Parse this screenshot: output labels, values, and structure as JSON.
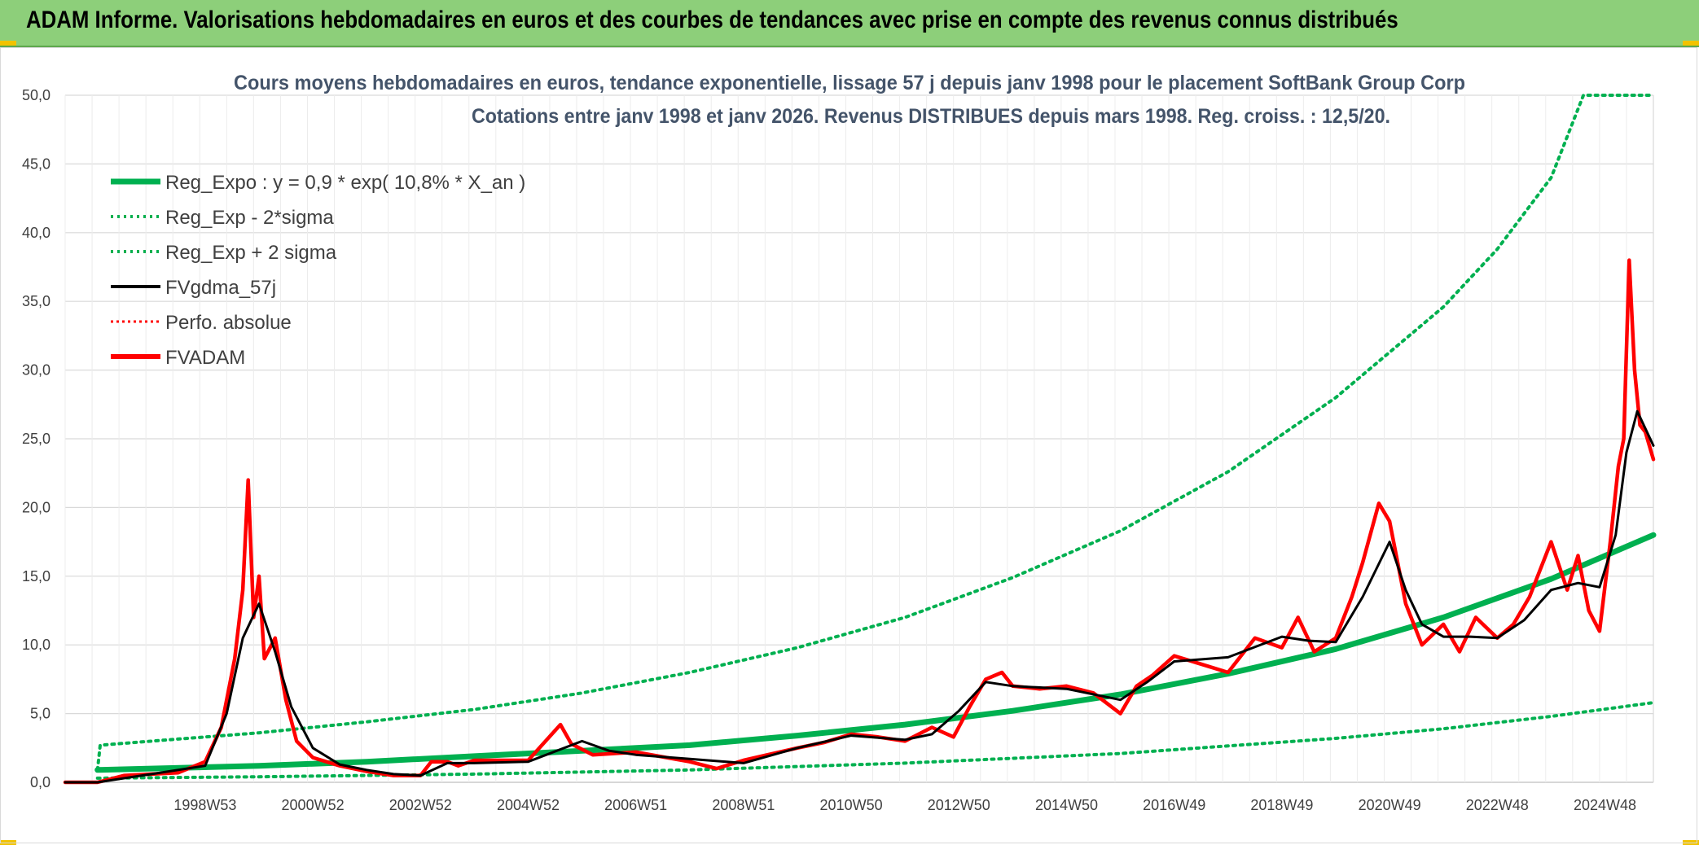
{
  "header": {
    "title": "ADAM Informe. Valorisations hebdomadaires en euros et des courbes de tendances avec prise en compte des revenus connus distribués"
  },
  "colors": {
    "banner": "#8dcf7a",
    "green": "#00b050",
    "red": "#ff0000",
    "black": "#000000",
    "grid": "#d9d9d9"
  },
  "chart_data": {
    "type": "line",
    "title_line1": "Cours moyens hebdomadaires en euros, tendance exponentielle, lissage 57 j depuis janv 1998 pour le placement SoftBank Group Corp",
    "title_line2": "Cotations entre janv 1998 et janv 2026. Revenus DISTRIBUES depuis mars 1998. Reg. croiss. : 12,5/20.",
    "ylim": [
      0,
      50
    ],
    "x_range": [
      1996.4,
      2025.9
    ],
    "y_ticks": [
      "0,0",
      "5,0",
      "10,0",
      "15,0",
      "20,0",
      "25,0",
      "30,0",
      "35,0",
      "40,0",
      "45,0",
      "50,0"
    ],
    "x_ticks": [
      {
        "label": "1998W53",
        "x": 1999.0
      },
      {
        "label": "2000W52",
        "x": 2001.0
      },
      {
        "label": "2002W52",
        "x": 2003.0
      },
      {
        "label": "2004W52",
        "x": 2005.0
      },
      {
        "label": "2006W51",
        "x": 2007.0
      },
      {
        "label": "2008W51",
        "x": 2009.0
      },
      {
        "label": "2010W50",
        "x": 2011.0
      },
      {
        "label": "2012W50",
        "x": 2013.0
      },
      {
        "label": "2014W50",
        "x": 2015.0
      },
      {
        "label": "2016W49",
        "x": 2017.0
      },
      {
        "label": "2018W49",
        "x": 2019.0
      },
      {
        "label": "2020W49",
        "x": 2021.0
      },
      {
        "label": "2022W48",
        "x": 2023.0
      },
      {
        "label": "2024W48",
        "x": 2025.0
      }
    ],
    "legend": [
      {
        "label": "Reg_Expo : y = 0,9 * exp( 10,8% *  X_an )",
        "color": "#00b050",
        "style": "solid-thick"
      },
      {
        "label": "Reg_Exp - 2*sigma",
        "color": "#00b050",
        "style": "dotted"
      },
      {
        "label": "Reg_Exp + 2 sigma",
        "color": "#00b050",
        "style": "dotted"
      },
      {
        "label": "FVgdma_57j",
        "color": "#000000",
        "style": "solid"
      },
      {
        "label": "Perfo. absolue",
        "color": "#ff0000",
        "style": "dotted"
      },
      {
        "label": "FVADAM",
        "color": "#ff0000",
        "style": "solid-thick"
      }
    ],
    "series": [
      {
        "name": "Reg_Expo : y = 0,9 * exp( 10,8% *  X_an )",
        "x": [
          1997.0,
          1998.0,
          2000.0,
          2002.0,
          2004.0,
          2006.0,
          2008.0,
          2010.0,
          2012.0,
          2014.0,
          2016.0,
          2018.0,
          2020.0,
          2022.0,
          2024.0,
          2025.9
        ],
        "values": [
          0.9,
          1.0,
          1.2,
          1.5,
          1.9,
          2.3,
          2.7,
          3.4,
          4.2,
          5.2,
          6.4,
          7.9,
          9.7,
          12.0,
          14.8,
          18.0
        ]
      },
      {
        "name": "Reg_Exp - 2*sigma",
        "x": [
          1997.0,
          2000.0,
          2004.0,
          2008.0,
          2012.0,
          2016.0,
          2020.0,
          2022.0,
          2024.0,
          2025.9
        ],
        "values": [
          0.3,
          0.4,
          0.6,
          0.9,
          1.4,
          2.1,
          3.2,
          3.9,
          4.8,
          5.8
        ]
      },
      {
        "name": "Reg_Exp + 2 sigma",
        "x": [
          1997.0,
          1997.05,
          1998.0,
          2000.0,
          2002.0,
          2004.0,
          2006.0,
          2008.0,
          2010.0,
          2012.0,
          2014.0,
          2016.0,
          2018.0,
          2020.0,
          2022.0,
          2023.0,
          2024.0,
          2024.6,
          2025.9
        ],
        "values": [
          0.9,
          2.7,
          3.0,
          3.6,
          4.4,
          5.3,
          6.5,
          8.0,
          9.8,
          12.0,
          14.9,
          18.3,
          22.6,
          28.0,
          34.6,
          38.8,
          44.0,
          50.0,
          50.0
        ]
      },
      {
        "name": "FVgdma_57j",
        "x": [
          1996.4,
          1997.0,
          1998.0,
          1999.0,
          1999.4,
          1999.7,
          2000.0,
          2000.3,
          2000.6,
          2001.0,
          2001.5,
          2002.0,
          2002.5,
          2003.0,
          2003.5,
          2004.0,
          2005.0,
          2006.0,
          2006.5,
          2007.0,
          2008.0,
          2009.0,
          2010.0,
          2011.0,
          2012.0,
          2012.5,
          2013.0,
          2013.5,
          2014.0,
          2015.0,
          2016.0,
          2016.5,
          2017.0,
          2018.0,
          2019.0,
          2019.5,
          2020.0,
          2020.5,
          2021.0,
          2021.3,
          2021.6,
          2022.0,
          2022.5,
          2023.0,
          2023.5,
          2024.0,
          2024.5,
          2024.9,
          2025.2,
          2025.4,
          2025.6,
          2025.9
        ],
        "values": [
          0.0,
          0.0,
          0.6,
          1.2,
          5.0,
          10.5,
          13.0,
          9.5,
          5.5,
          2.5,
          1.3,
          0.9,
          0.6,
          0.5,
          1.4,
          1.4,
          1.5,
          3.0,
          2.3,
          2.0,
          1.7,
          1.4,
          2.5,
          3.4,
          3.1,
          3.5,
          5.2,
          7.3,
          7.0,
          6.8,
          6.0,
          7.3,
          8.8,
          9.1,
          10.6,
          10.3,
          10.2,
          13.5,
          17.5,
          14.0,
          11.5,
          10.6,
          10.6,
          10.5,
          11.8,
          14.0,
          14.5,
          14.2,
          18.0,
          24.0,
          27.0,
          24.5
        ]
      },
      {
        "name": "FVADAM",
        "x": [
          1996.4,
          1997.0,
          1997.5,
          1998.0,
          1998.5,
          1999.0,
          1999.3,
          1999.55,
          1999.7,
          1999.8,
          1999.9,
          2000.0,
          2000.1,
          2000.3,
          2000.5,
          2000.7,
          2001.0,
          2001.5,
          2002.0,
          2002.5,
          2003.0,
          2003.2,
          2003.5,
          2003.7,
          2004.0,
          2005.0,
          2005.6,
          2005.8,
          2006.2,
          2007.0,
          2008.0,
          2008.5,
          2009.0,
          2010.0,
          2010.5,
          2011.0,
          2011.5,
          2012.0,
          2012.5,
          2012.9,
          2013.2,
          2013.5,
          2013.8,
          2014.0,
          2014.5,
          2015.0,
          2015.5,
          2016.0,
          2016.3,
          2016.6,
          2017.0,
          2017.5,
          2018.0,
          2018.5,
          2019.0,
          2019.3,
          2019.6,
          2020.0,
          2020.3,
          2020.5,
          2020.8,
          2021.0,
          2021.3,
          2021.6,
          2022.0,
          2022.3,
          2022.6,
          2023.0,
          2023.3,
          2023.6,
          2024.0,
          2024.3,
          2024.5,
          2024.7,
          2024.9,
          2025.1,
          2025.25,
          2025.35,
          2025.45,
          2025.55,
          2025.65,
          2025.75,
          2025.9
        ],
        "values": [
          0.0,
          0.0,
          0.5,
          0.6,
          0.7,
          1.5,
          4.0,
          9.0,
          14.0,
          22.0,
          12.0,
          15.0,
          9.0,
          10.5,
          6.0,
          3.0,
          1.8,
          1.2,
          0.8,
          0.5,
          0.5,
          1.5,
          1.5,
          1.2,
          1.6,
          1.6,
          4.2,
          2.8,
          2.0,
          2.2,
          1.5,
          1.0,
          1.6,
          2.5,
          2.9,
          3.5,
          3.3,
          3.0,
          4.0,
          3.3,
          5.5,
          7.5,
          8.0,
          7.0,
          6.8,
          7.0,
          6.5,
          5.0,
          7.0,
          7.8,
          9.2,
          8.6,
          8.0,
          10.5,
          9.8,
          12.0,
          9.5,
          10.5,
          13.5,
          16.0,
          20.3,
          19.0,
          13.0,
          10.0,
          11.5,
          9.5,
          12.0,
          10.5,
          11.5,
          13.5,
          17.5,
          14.0,
          16.5,
          12.5,
          11.0,
          17.5,
          23.0,
          25.0,
          38.0,
          30.0,
          26.0,
          25.5,
          23.5
        ]
      }
    ]
  }
}
